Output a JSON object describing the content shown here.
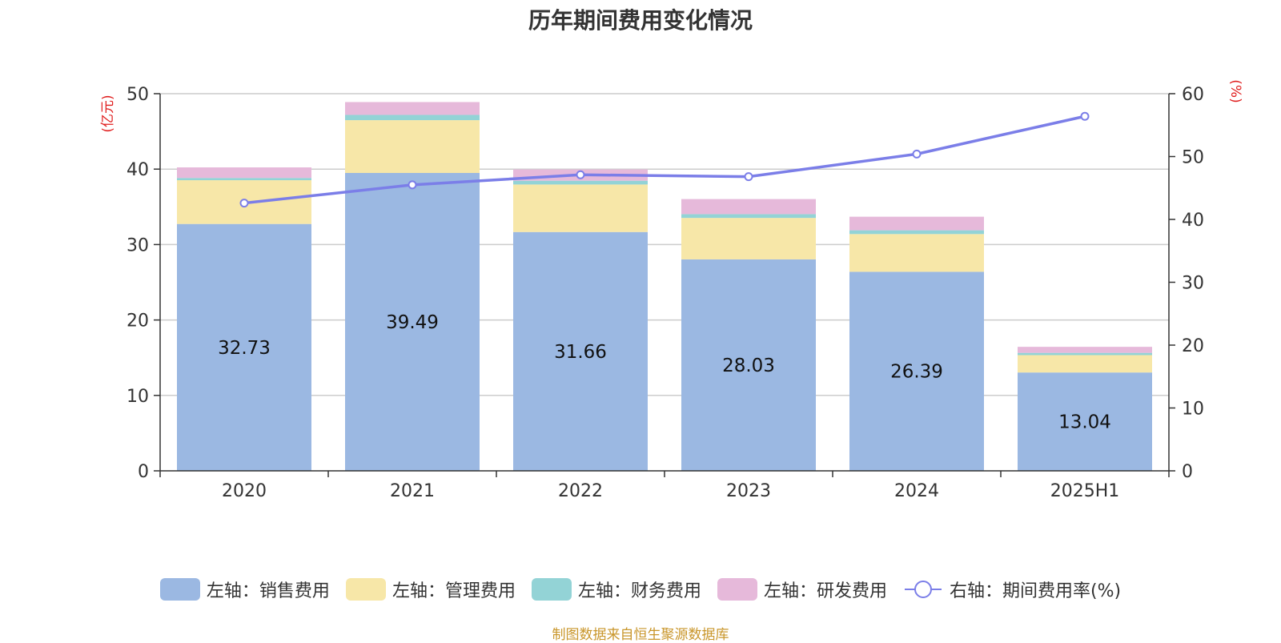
{
  "title": "历年期间费用变化情况",
  "source": "制图数据来自恒生聚源数据库",
  "chart_data": {
    "type": "bar",
    "stacked": true,
    "categories": [
      "2020",
      "2021",
      "2022",
      "2023",
      "2024",
      "2025H1"
    ],
    "left_axis": {
      "unit": "(亿元)",
      "ylim": [
        0,
        50
      ],
      "ticks": [
        0,
        10,
        20,
        30,
        40,
        50
      ]
    },
    "right_axis": {
      "unit": "(%)",
      "ylim": [
        0,
        60
      ],
      "ticks": [
        0,
        10,
        20,
        30,
        40,
        50,
        60
      ]
    },
    "grid": true,
    "legend_position": "bottom",
    "series": [
      {
        "name": "左轴：销售费用",
        "axis": "left",
        "color": "#9bb8e2",
        "values": [
          32.73,
          39.49,
          31.66,
          28.03,
          26.39,
          13.04
        ],
        "labels": [
          "32.73",
          "39.49",
          "31.66",
          "28.03",
          "26.39",
          "13.04"
        ]
      },
      {
        "name": "左轴：管理费用",
        "axis": "left",
        "color": "#f7e7a8",
        "values": [
          5.8,
          7.0,
          6.3,
          5.5,
          5.0,
          2.3
        ]
      },
      {
        "name": "左轴：财务费用",
        "axis": "left",
        "color": "#93d3d6",
        "values": [
          0.3,
          0.7,
          0.5,
          0.5,
          0.5,
          0.3
        ]
      },
      {
        "name": "左轴：研发费用",
        "axis": "left",
        "color": "#e6b9da",
        "values": [
          1.4,
          1.7,
          1.5,
          2.0,
          1.8,
          0.8
        ]
      },
      {
        "name": "右轴：期间费用率(%)",
        "axis": "right",
        "type": "line",
        "color": "#7b7ee8",
        "values": [
          42.6,
          45.5,
          47.1,
          46.8,
          50.4,
          56.4
        ]
      }
    ]
  }
}
